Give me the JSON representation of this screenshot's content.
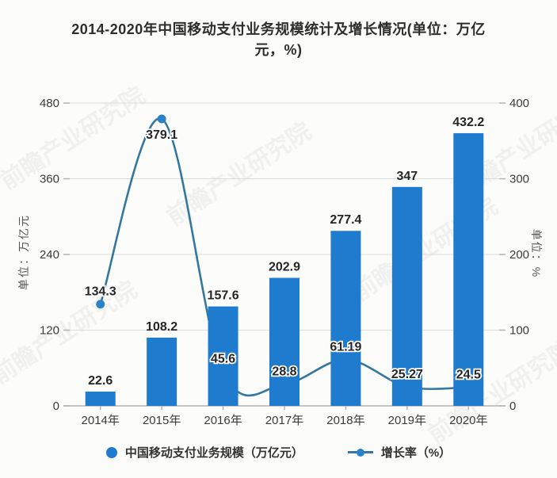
{
  "title": {
    "line1": "2014-2020年中国移动支付业务规模统计及增长情况(单位：万亿",
    "line2": "元，%)"
  },
  "watermark": {
    "text": "前瞻产业研究院"
  },
  "chart_data": {
    "type": "bar+line",
    "categories": [
      "2014年",
      "2015年",
      "2016年",
      "2017年",
      "2018年",
      "2019年",
      "2020年"
    ],
    "series": [
      {
        "name": "中国移动支付业务规模（万亿元）",
        "type": "bar",
        "axis": "left",
        "values": [
          22.6,
          108.2,
          157.6,
          202.9,
          277.4,
          347,
          432.2
        ],
        "color": "#1f7bce"
      },
      {
        "name": "增长率（%）",
        "type": "line",
        "axis": "right",
        "values": [
          134.3,
          379.1,
          45.6,
          28.8,
          61.19,
          25.27,
          24.5
        ],
        "color": "#35789f",
        "marker_color": "#2b82c9"
      }
    ],
    "left_axis": {
      "label": "单位：万亿元",
      "min": 0,
      "max": 480,
      "ticks": [
        0,
        120,
        240,
        360,
        480
      ]
    },
    "right_axis": {
      "label": "单位：%",
      "min": 0,
      "max": 400,
      "ticks": [
        0,
        100,
        200,
        300,
        400
      ]
    },
    "legend": [
      "中国移动支付业务规模（万亿元）",
      "增长率（%）"
    ],
    "grid": true,
    "legend_position": "bottom",
    "colors": {
      "grid": "#dcdcdc",
      "axis": "#b3b3b3",
      "tick_text": "#3c3c3c",
      "label_text": "#262626"
    }
  }
}
